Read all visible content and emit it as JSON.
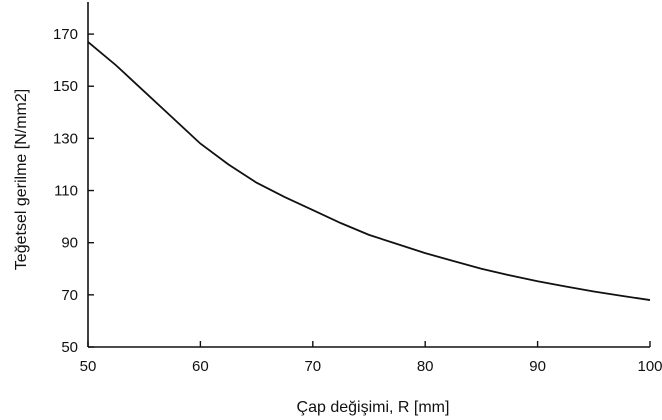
{
  "chart_data": {
    "type": "line",
    "title": "",
    "xlabel": "Çap değişimi, R [mm]",
    "ylabel": "Teğetsel gerilme [N/mm2]",
    "xlim": [
      50,
      100
    ],
    "ylim": [
      50,
      180
    ],
    "x_ticks": [
      50,
      60,
      70,
      80,
      90,
      100
    ],
    "y_ticks": [
      50,
      70,
      90,
      110,
      130,
      150,
      170
    ],
    "grid": false,
    "legend": "none",
    "series": [
      {
        "color": "#111111",
        "x": [
          50,
          52.5,
          55,
          57.5,
          60,
          62.5,
          65,
          67.5,
          70,
          72.5,
          75,
          77.5,
          80,
          82.5,
          85,
          87.5,
          90,
          92.5,
          95,
          97.5,
          100
        ],
        "values": [
          167,
          158,
          148,
          138,
          128,
          120,
          113,
          107.5,
          102.5,
          97.5,
          93,
          89.5,
          86,
          83,
          80,
          77.5,
          75.2,
          73.2,
          71.3,
          69.6,
          68
        ]
      }
    ]
  }
}
